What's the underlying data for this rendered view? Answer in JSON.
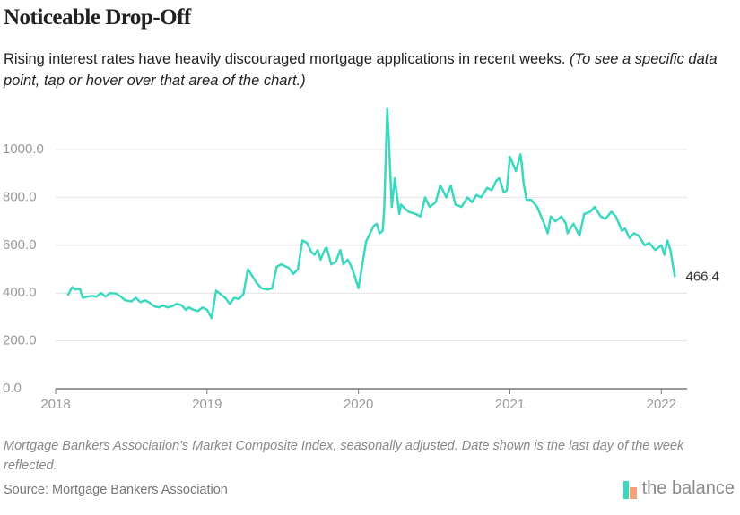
{
  "title": "Noticeable Drop-Off",
  "subtitle": "Rising interest rates have heavily discouraged mortgage applications in recent weeks.",
  "subtitle_note": "(To see a specific data point, tap or hover over that area of the chart.)",
  "note": "Mortgage Bankers Association's Market Composite Index, seasonally adjusted. Date shown is the last day of the week reflected.",
  "source": "Source: Mortgage Bankers Association",
  "logo": "the balance",
  "chart_data": {
    "type": "line",
    "color": "#3ad8bf",
    "grid": true,
    "xlim": [
      2018,
      2022.17
    ],
    "xticks": [
      2018,
      2019,
      2020,
      2021,
      2022
    ],
    "ylim": [
      0,
      1200
    ],
    "yticks": [
      {
        "value": 0,
        "label": "0.0"
      },
      {
        "value": 200,
        "label": "200.0"
      },
      {
        "value": 400,
        "label": "400.0"
      },
      {
        "value": 600,
        "label": "600.0"
      },
      {
        "value": 800,
        "label": "800.0"
      },
      {
        "value": 1000,
        "label": "1000.0"
      }
    ],
    "x": [
      2018.08,
      2018.11,
      2018.13,
      2018.16,
      2018.18,
      2018.21,
      2018.24,
      2018.27,
      2018.3,
      2018.33,
      2018.36,
      2018.4,
      2018.43,
      2018.46,
      2018.5,
      2018.53,
      2018.56,
      2018.59,
      2018.62,
      2018.65,
      2018.68,
      2018.71,
      2018.74,
      2018.77,
      2018.8,
      2018.83,
      2018.86,
      2018.88,
      2018.91,
      2018.94,
      2018.97,
      2019.0,
      2019.03,
      2019.06,
      2019.12,
      2019.15,
      2019.18,
      2019.21,
      2019.24,
      2019.27,
      2019.3,
      2019.33,
      2019.36,
      2019.4,
      2019.43,
      2019.46,
      2019.49,
      2019.54,
      2019.57,
      2019.6,
      2019.63,
      2019.66,
      2019.69,
      2019.71,
      2019.73,
      2019.75,
      2019.78,
      2019.79,
      2019.82,
      2019.85,
      2019.88,
      2019.9,
      2019.93,
      2019.96,
      2020.0,
      2020.05,
      2020.1,
      2020.12,
      2020.14,
      2020.16,
      2020.17,
      2020.19,
      2020.2,
      2020.22,
      2020.24,
      2020.27,
      2020.28,
      2020.33,
      2020.38,
      2020.41,
      2020.44,
      2020.47,
      2020.51,
      2020.54,
      2020.58,
      2020.61,
      2020.64,
      2020.68,
      2020.72,
      2020.75,
      2020.78,
      2020.81,
      2020.85,
      2020.88,
      2020.91,
      2020.93,
      2020.96,
      2020.98,
      2021.0,
      2021.04,
      2021.07,
      2021.08,
      2021.09,
      2021.11,
      2021.14,
      2021.18,
      2021.22,
      2021.25,
      2021.27,
      2021.3,
      2021.34,
      2021.37,
      2021.38,
      2021.42,
      2021.46,
      2021.49,
      2021.53,
      2021.56,
      2021.6,
      2021.63,
      2021.67,
      2021.7,
      2021.74,
      2021.76,
      2021.79,
      2021.82,
      2021.85,
      2021.89,
      2021.92,
      2021.96,
      2022.0,
      2022.02,
      2022.04,
      2022.06,
      2022.07,
      2022.09
    ],
    "values": [
      390,
      425,
      415,
      418,
      380,
      385,
      388,
      385,
      400,
      385,
      400,
      398,
      385,
      370,
      365,
      380,
      362,
      370,
      360,
      345,
      340,
      348,
      340,
      345,
      355,
      350,
      330,
      340,
      330,
      325,
      340,
      330,
      295,
      410,
      380,
      355,
      380,
      375,
      395,
      500,
      470,
      440,
      420,
      415,
      420,
      510,
      520,
      505,
      480,
      500,
      620,
      610,
      570,
      560,
      580,
      540,
      585,
      590,
      520,
      530,
      580,
      520,
      540,
      500,
      420,
      615,
      680,
      690,
      650,
      660,
      750,
      1170,
      1050,
      760,
      880,
      730,
      770,
      740,
      730,
      720,
      800,
      760,
      780,
      850,
      800,
      850,
      770,
      760,
      800,
      780,
      810,
      800,
      840,
      830,
      870,
      880,
      820,
      830,
      970,
      910,
      980,
      930,
      860,
      790,
      790,
      760,
      700,
      650,
      720,
      700,
      720,
      690,
      650,
      690,
      640,
      730,
      740,
      760,
      720,
      710,
      740,
      720,
      660,
      670,
      630,
      650,
      640,
      600,
      610,
      580,
      600,
      560,
      620,
      580,
      540,
      466.4
    ]
  }
}
